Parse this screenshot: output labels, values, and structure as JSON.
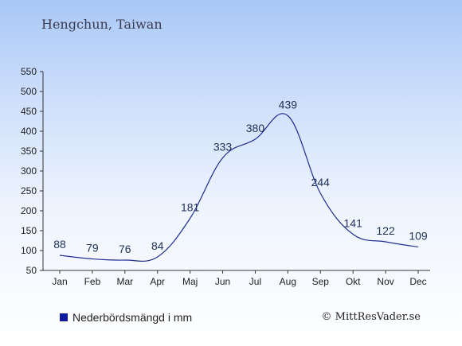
{
  "title": "Hengchun, Taiwan",
  "legend": {
    "label": "Nederbördsmängd i mm",
    "color": "#0f1a9e"
  },
  "credit": "© MittResVader.se",
  "chart_data": {
    "type": "line",
    "title": "Hengchun, Taiwan",
    "xlabel": "",
    "ylabel": "",
    "categories": [
      "Jan",
      "Feb",
      "Mar",
      "Apr",
      "Maj",
      "Jun",
      "Jul",
      "Aug",
      "Sep",
      "Okt",
      "Nov",
      "Dec"
    ],
    "series": [
      {
        "name": "Nederbördsmängd i mm",
        "values": [
          88,
          79,
          76,
          84,
          181,
          333,
          380,
          439,
          244,
          141,
          122,
          109
        ],
        "color": "#1f2e8f"
      }
    ],
    "ylim": [
      50,
      550
    ],
    "yticks": [
      50,
      100,
      150,
      200,
      250,
      300,
      350,
      400,
      450,
      500,
      550
    ],
    "grid": false,
    "legend_position": "bottom-left"
  }
}
